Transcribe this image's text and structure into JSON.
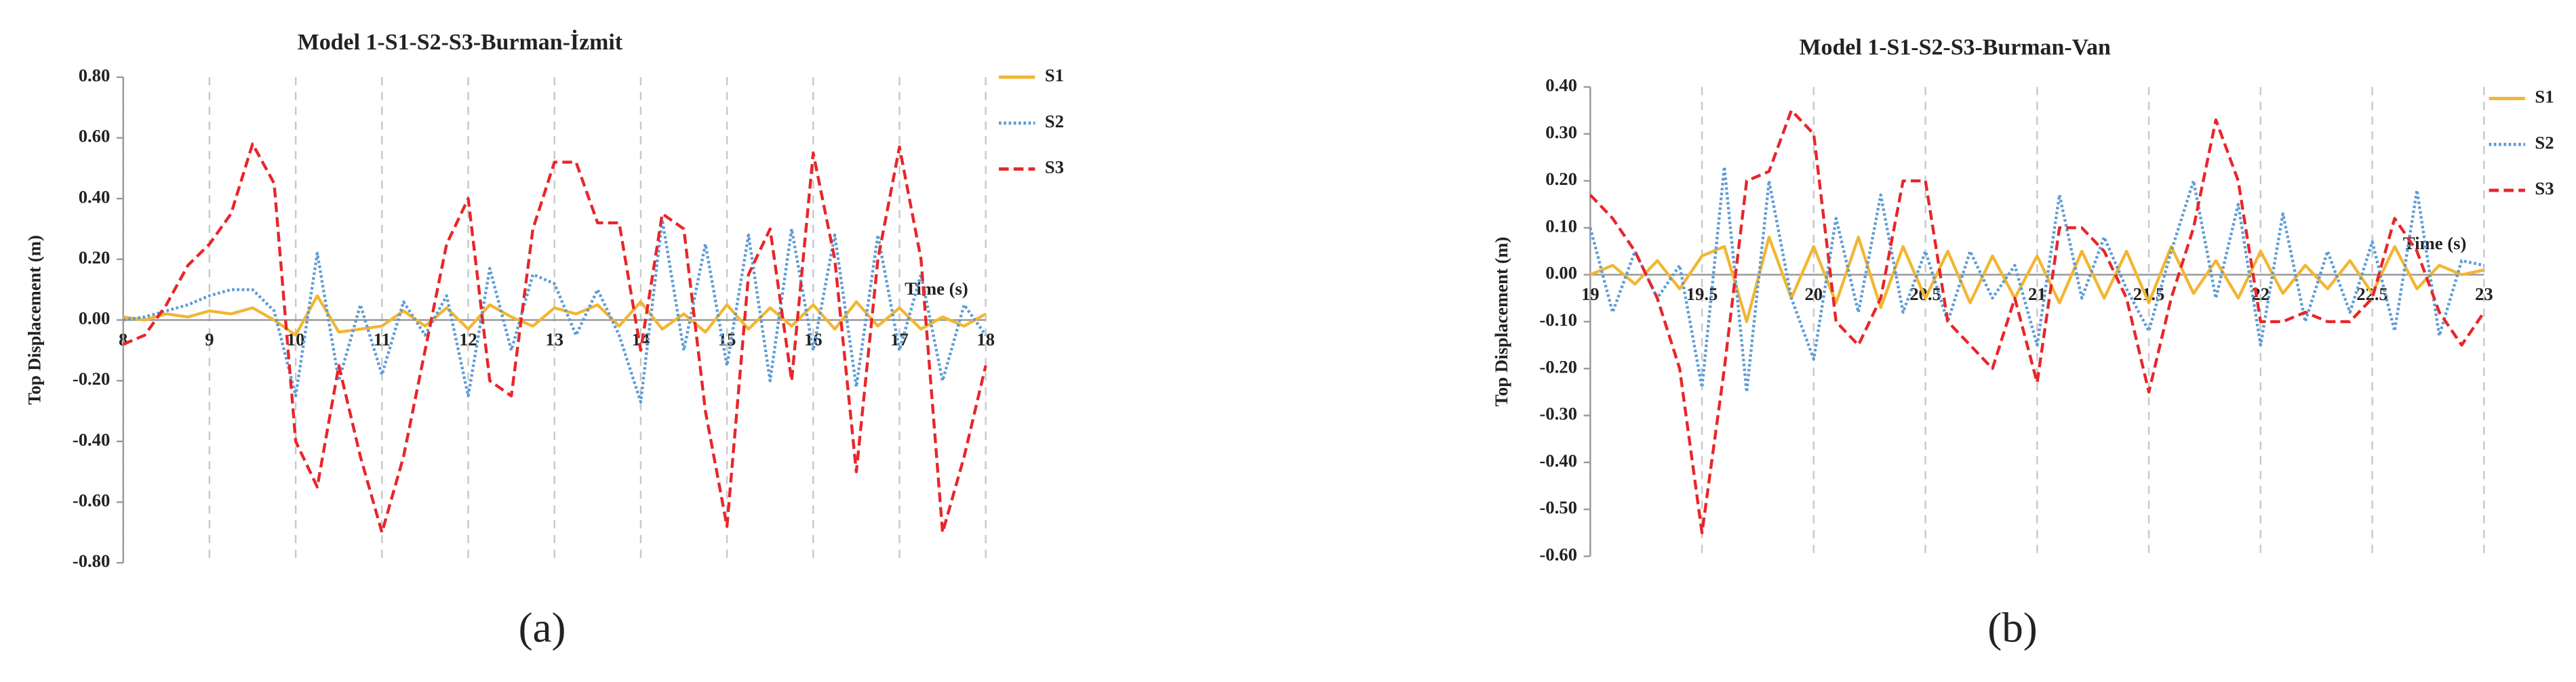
{
  "chart_data": [
    {
      "type": "line",
      "title": "Model 1-S1-S2-S3-Burman-İzmit",
      "caption": "(a)",
      "x_label": "Time (s)",
      "y_label": "Top Displacement (m)",
      "xlim": [
        8,
        18
      ],
      "xticks": [
        8,
        9,
        10,
        11,
        12,
        13,
        14,
        15,
        16,
        17,
        18
      ],
      "ylim": [
        -0.8,
        0.8
      ],
      "yticks": [
        {
          "value": -0.8,
          "label": "-0.80"
        },
        {
          "value": -0.6,
          "label": "-0.60"
        },
        {
          "value": -0.4,
          "label": "-0.40"
        },
        {
          "value": -0.2,
          "label": "-0.20"
        },
        {
          "value": 0,
          "label": "0.00"
        },
        {
          "value": 0.2,
          "label": "0.20"
        },
        {
          "value": 0.4,
          "label": "0.40"
        },
        {
          "value": 0.6,
          "label": "0.60"
        },
        {
          "value": 0.8,
          "label": "0.80"
        }
      ],
      "grid": "x",
      "x": [
        8,
        8.25,
        8.5,
        8.75,
        9,
        9.25,
        9.5,
        9.75,
        10,
        10.25,
        10.5,
        10.75,
        11,
        11.25,
        11.5,
        11.75,
        12,
        12.25,
        12.5,
        12.75,
        13,
        13.25,
        13.5,
        13.75,
        14,
        14.25,
        14.5,
        14.75,
        15,
        15.25,
        15.5,
        15.75,
        16,
        16.25,
        16.5,
        16.75,
        17,
        17.25,
        17.5,
        17.75,
        18
      ],
      "series": [
        {
          "name": "S1",
          "color": "#f2b632",
          "style": "solid",
          "values": [
            0.01,
            0.0,
            0.02,
            0.01,
            0.03,
            0.02,
            0.04,
            0.0,
            -0.05,
            0.08,
            -0.04,
            -0.03,
            -0.02,
            0.03,
            -0.02,
            0.04,
            -0.03,
            0.05,
            0.01,
            -0.02,
            0.04,
            0.02,
            0.05,
            -0.02,
            0.06,
            -0.03,
            0.02,
            -0.04,
            0.05,
            -0.03,
            0.04,
            -0.02,
            0.05,
            -0.03,
            0.06,
            -0.02,
            0.04,
            -0.03,
            0.01,
            -0.02,
            0.02
          ]
        },
        {
          "name": "S2",
          "color": "#5b9bd5",
          "style": "dotted",
          "values": [
            0.0,
            0.01,
            0.03,
            0.05,
            0.08,
            0.1,
            0.1,
            0.03,
            -0.25,
            0.22,
            -0.2,
            0.05,
            -0.18,
            0.06,
            -0.05,
            0.08,
            -0.25,
            0.17,
            -0.1,
            0.15,
            0.12,
            -0.05,
            0.1,
            -0.05,
            -0.27,
            0.33,
            -0.1,
            0.25,
            -0.15,
            0.28,
            -0.2,
            0.3,
            -0.1,
            0.28,
            -0.22,
            0.28,
            -0.1,
            0.15,
            -0.2,
            0.05,
            -0.05
          ]
        },
        {
          "name": "S3",
          "color": "#e8262a",
          "style": "dashed",
          "values": [
            -0.08,
            -0.05,
            0.05,
            0.18,
            0.25,
            0.35,
            0.58,
            0.45,
            -0.4,
            -0.55,
            -0.15,
            -0.45,
            -0.7,
            -0.45,
            -0.1,
            0.25,
            0.4,
            -0.2,
            -0.25,
            0.3,
            0.52,
            0.52,
            0.32,
            0.32,
            -0.1,
            0.35,
            0.3,
            -0.3,
            -0.68,
            0.15,
            0.3,
            -0.2,
            0.55,
            0.2,
            -0.5,
            0.2,
            0.57,
            0.2,
            -0.7,
            -0.45,
            -0.15
          ]
        }
      ]
    },
    {
      "type": "line",
      "title": "Model 1-S1-S2-S3-Burman-Van",
      "caption": "(b)",
      "x_label": "Time (s)",
      "y_label": "Top Displacement (m)",
      "xlim": [
        19,
        23
      ],
      "xticks": [
        19,
        19.5,
        20,
        20.5,
        21,
        21.5,
        22,
        22.5,
        23
      ],
      "ylim": [
        -0.6,
        0.4
      ],
      "yticks": [
        {
          "value": -0.6,
          "label": "-0.60"
        },
        {
          "value": -0.5,
          "label": "-0.50"
        },
        {
          "value": -0.4,
          "label": "-0.40"
        },
        {
          "value": -0.3,
          "label": "-0.30"
        },
        {
          "value": -0.2,
          "label": "-0.20"
        },
        {
          "value": -0.1,
          "label": "-0.10"
        },
        {
          "value": 0,
          "label": "0.00"
        },
        {
          "value": 0.1,
          "label": "0.10"
        },
        {
          "value": 0.2,
          "label": "0.20"
        },
        {
          "value": 0.3,
          "label": "0.30"
        },
        {
          "value": 0.4,
          "label": "0.40"
        }
      ],
      "grid": "x",
      "x": [
        19,
        19.1,
        19.2,
        19.3,
        19.4,
        19.5,
        19.6,
        19.7,
        19.8,
        19.9,
        20,
        20.1,
        20.2,
        20.3,
        20.4,
        20.5,
        20.6,
        20.7,
        20.8,
        20.9,
        21,
        21.1,
        21.2,
        21.3,
        21.4,
        21.5,
        21.6,
        21.7,
        21.8,
        21.9,
        22,
        22.1,
        22.2,
        22.3,
        22.4,
        22.5,
        22.6,
        22.7,
        22.8,
        22.9,
        23
      ],
      "series": [
        {
          "name": "S1",
          "color": "#f2b632",
          "style": "solid",
          "values": [
            0.0,
            0.02,
            -0.02,
            0.03,
            -0.03,
            0.04,
            0.06,
            -0.1,
            0.08,
            -0.05,
            0.06,
            -0.06,
            0.08,
            -0.07,
            0.06,
            -0.05,
            0.05,
            -0.06,
            0.04,
            -0.05,
            0.04,
            -0.06,
            0.05,
            -0.05,
            0.05,
            -0.06,
            0.06,
            -0.04,
            0.03,
            -0.05,
            0.05,
            -0.04,
            0.02,
            -0.03,
            0.03,
            -0.04,
            0.06,
            -0.03,
            0.02,
            0.0,
            0.01
          ]
        },
        {
          "name": "S2",
          "color": "#5b9bd5",
          "style": "dotted",
          "values": [
            0.1,
            -0.08,
            0.05,
            -0.05,
            0.02,
            -0.24,
            0.23,
            -0.25,
            0.2,
            -0.05,
            -0.18,
            0.12,
            -0.08,
            0.17,
            -0.08,
            0.05,
            -0.1,
            0.05,
            -0.05,
            0.02,
            -0.15,
            0.17,
            -0.05,
            0.08,
            -0.03,
            -0.12,
            0.05,
            0.2,
            -0.05,
            0.15,
            -0.15,
            0.13,
            -0.1,
            0.05,
            -0.08,
            0.07,
            -0.12,
            0.18,
            -0.13,
            0.03,
            0.02
          ]
        },
        {
          "name": "S3",
          "color": "#e8262a",
          "style": "dashed",
          "values": [
            0.17,
            0.12,
            0.05,
            -0.05,
            -0.2,
            -0.55,
            -0.2,
            0.2,
            0.22,
            0.35,
            0.3,
            -0.1,
            -0.15,
            -0.05,
            0.2,
            0.2,
            -0.1,
            -0.15,
            -0.2,
            -0.05,
            -0.23,
            0.1,
            0.1,
            0.05,
            -0.05,
            -0.25,
            -0.05,
            0.1,
            0.33,
            0.2,
            -0.1,
            -0.1,
            -0.08,
            -0.1,
            -0.1,
            -0.05,
            0.12,
            0.05,
            -0.08,
            -0.15,
            -0.08
          ]
        }
      ]
    }
  ]
}
